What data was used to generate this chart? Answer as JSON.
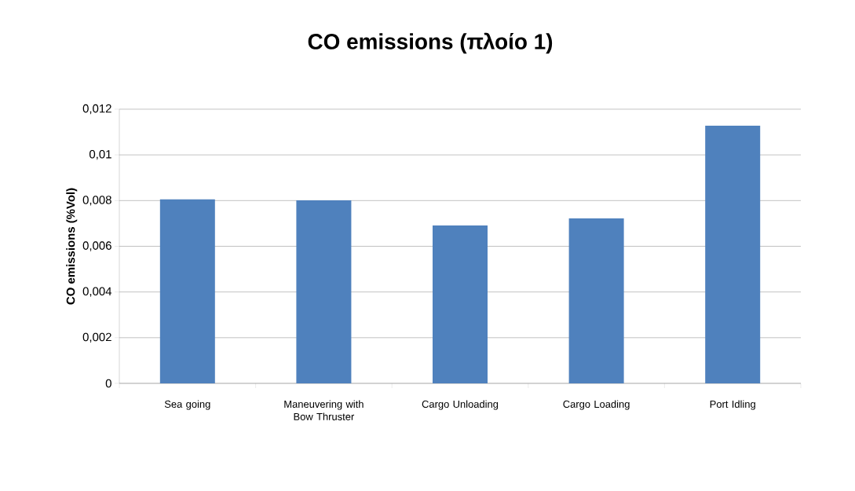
{
  "chart_data": {
    "type": "bar",
    "title": "CO emissions (πλοίο 1)",
    "ylabel": "CO emissions (%Vol)",
    "categories": [
      "Sea going",
      "Maneuvering with Bow Thruster",
      "Cargo Unloading",
      "Cargo Loading",
      "Port Idling"
    ],
    "values": [
      0.00805,
      0.00801,
      0.00691,
      0.00722,
      0.01128
    ],
    "color": "#4f81bd",
    "ylim": [
      0,
      0.012
    ],
    "yticks": [
      0,
      {
        "value": 0.002,
        "label": "0,002"
      },
      {
        "value": 0.004,
        "label": "0,004"
      },
      {
        "value": 0.006,
        "label": "0,006"
      },
      {
        "value": 0.008,
        "label": "0,008"
      },
      {
        "value": 0.01,
        "label": "0,01"
      },
      {
        "value": 0.012,
        "label": "0,012"
      }
    ],
    "grid": "y"
  }
}
